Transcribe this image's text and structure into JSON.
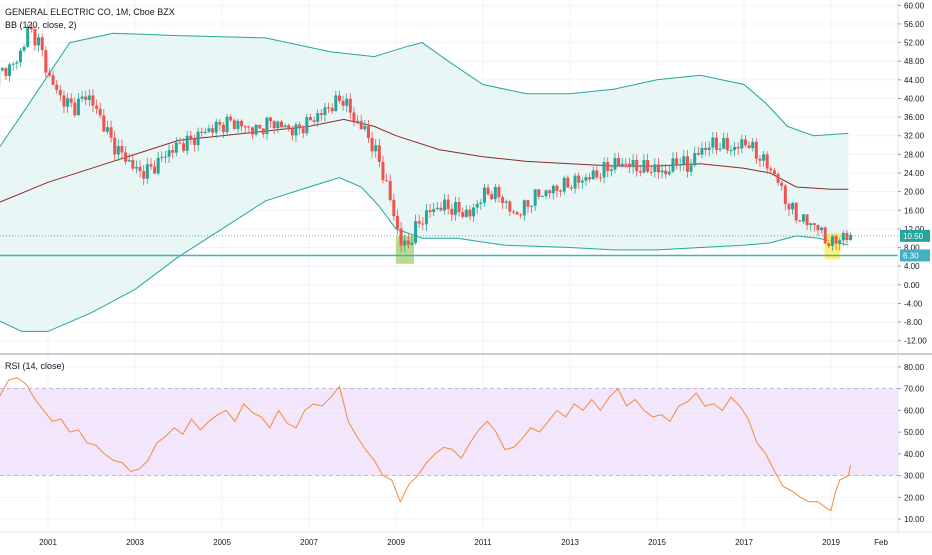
{
  "legend": {
    "symbol": "GENERAL ELECTRIC CO, 1M, Cboe BZX",
    "bb": "BB (120, close, 2)",
    "rsi": "RSI (14, close)"
  },
  "colors": {
    "up": "#26a69a",
    "down": "#ef5350",
    "bb_band": "#26a69a",
    "bb_basis": "#8d2b2b",
    "bb_fill": "#e8f6f5",
    "rsi_line": "#f28c3c",
    "rsi_band_fill": "#f3e5fb",
    "price_line": "#26a69a",
    "support_line": "#45b0c0",
    "highlight_green": "#8bc34a",
    "highlight_yellow": "#ffeb3b"
  },
  "chart_data": [
    {
      "type": "candlestick",
      "title": "GENERAL ELECTRIC CO, 1M, Cboe BZX",
      "ylim": [
        -14,
        62
      ],
      "yticks": [
        "60.00",
        "56.00",
        "52.00",
        "48.00",
        "44.00",
        "40.00",
        "36.00",
        "32.00",
        "28.00",
        "24.00",
        "20.00",
        "16.00",
        "12.00",
        "8.00",
        "4.00",
        "0.00",
        "-4.00",
        "-8.00",
        "-12.00"
      ],
      "xticks": [
        "2001",
        "2003",
        "2005",
        "2007",
        "2009",
        "2011",
        "2013",
        "2015",
        "2017",
        "2019",
        "Feb"
      ],
      "price_labels": [
        {
          "text": "10.50",
          "value": 10.5
        },
        {
          "text": "6.30",
          "value": 6.3
        }
      ],
      "support_level": 6.3,
      "series": [
        {
          "name": "BB (120, close, 2)",
          "upper": [
            [
              1999.7,
              27
            ],
            [
              2000.5,
              38
            ],
            [
              2001.5,
              52
            ],
            [
              2002.5,
              54
            ],
            [
              2004,
              53.5
            ],
            [
              2006,
              53
            ],
            [
              2007.5,
              50
            ],
            [
              2008.5,
              49
            ],
            [
              2009.2,
              51
            ],
            [
              2009.6,
              52
            ],
            [
              2010.2,
              48
            ],
            [
              2011,
              43
            ],
            [
              2012,
              41
            ],
            [
              2013,
              41
            ],
            [
              2014,
              42
            ],
            [
              2015,
              44
            ],
            [
              2016,
              45
            ],
            [
              2017,
              43
            ],
            [
              2017.5,
              39
            ],
            [
              2018,
              34
            ],
            [
              2018.6,
              32
            ],
            [
              2019.4,
              32.5
            ]
          ],
          "basis": [
            [
              1999.7,
              17
            ],
            [
              2001,
              22
            ],
            [
              2002,
              25
            ],
            [
              2003,
              28
            ],
            [
              2004,
              31
            ],
            [
              2005,
              32
            ],
            [
              2006,
              33
            ],
            [
              2007,
              34
            ],
            [
              2007.8,
              35.5
            ],
            [
              2008.5,
              34
            ],
            [
              2009,
              32
            ],
            [
              2010,
              29
            ],
            [
              2011,
              27.5
            ],
            [
              2012,
              26.5
            ],
            [
              2013,
              26
            ],
            [
              2014,
              25.5
            ],
            [
              2015,
              25.5
            ],
            [
              2016,
              26
            ],
            [
              2017,
              25
            ],
            [
              2017.6,
              24
            ],
            [
              2018.2,
              21
            ],
            [
              2019,
              20.5
            ],
            [
              2019.4,
              20.5
            ]
          ],
          "lower": [
            [
              1999.7,
              -7
            ],
            [
              2000.4,
              -10
            ],
            [
              2001,
              -10
            ],
            [
              2002,
              -6
            ],
            [
              2003,
              -1
            ],
            [
              2004,
              6
            ],
            [
              2005,
              12
            ],
            [
              2006,
              18
            ],
            [
              2007,
              21
            ],
            [
              2007.7,
              23
            ],
            [
              2008.2,
              21
            ],
            [
              2008.6,
              17
            ],
            [
              2009,
              12
            ],
            [
              2009.6,
              10
            ],
            [
              2010.4,
              10
            ],
            [
              2011.5,
              8.5
            ],
            [
              2013,
              8
            ],
            [
              2014,
              7.5
            ],
            [
              2015,
              7.5
            ],
            [
              2016,
              8
            ],
            [
              2017,
              8.5
            ],
            [
              2017.6,
              9
            ],
            [
              2018.2,
              10.5
            ],
            [
              2018.7,
              10
            ],
            [
              2019.4,
              8.5
            ]
          ]
        }
      ],
      "close_path": [
        [
          1999.7,
          44
        ],
        [
          2000,
          46
        ],
        [
          2000.3,
          48
        ],
        [
          2000.55,
          55
        ],
        [
          2000.8,
          52
        ],
        [
          2001,
          45
        ],
        [
          2001.3,
          40
        ],
        [
          2001.6,
          38
        ],
        [
          2001.9,
          41
        ],
        [
          2002.2,
          36
        ],
        [
          2002.5,
          30
        ],
        [
          2002.8,
          27
        ],
        [
          2003.1,
          24
        ],
        [
          2003.4,
          25
        ],
        [
          2003.7,
          28
        ],
        [
          2004,
          30
        ],
        [
          2004.3,
          31
        ],
        [
          2004.6,
          33
        ],
        [
          2004.9,
          34
        ],
        [
          2005.2,
          35
        ],
        [
          2005.5,
          34
        ],
        [
          2005.8,
          33
        ],
        [
          2006.1,
          35
        ],
        [
          2006.4,
          34
        ],
        [
          2006.7,
          33
        ],
        [
          2007,
          35
        ],
        [
          2007.3,
          37
        ],
        [
          2007.6,
          39
        ],
        [
          2007.8,
          40
        ],
        [
          2008,
          36
        ],
        [
          2008.3,
          33
        ],
        [
          2008.6,
          27
        ],
        [
          2008.85,
          19
        ],
        [
          2009.0,
          13
        ],
        [
          2009.15,
          8
        ],
        [
          2009.3,
          9
        ],
        [
          2009.5,
          13
        ],
        [
          2009.8,
          16
        ],
        [
          2010.1,
          17
        ],
        [
          2010.4,
          16
        ],
        [
          2010.7,
          15
        ],
        [
          2010.9,
          18
        ],
        [
          2011.1,
          20
        ],
        [
          2011.4,
          19
        ],
        [
          2011.7,
          15
        ],
        [
          2011.9,
          16
        ],
        [
          2012.2,
          19
        ],
        [
          2012.5,
          20
        ],
        [
          2012.8,
          21
        ],
        [
          2013.1,
          22
        ],
        [
          2013.4,
          23
        ],
        [
          2013.7,
          24
        ],
        [
          2014,
          26
        ],
        [
          2014.3,
          26
        ],
        [
          2014.6,
          25
        ],
        [
          2014.9,
          25
        ],
        [
          2015.2,
          24
        ],
        [
          2015.5,
          27
        ],
        [
          2015.7,
          25
        ],
        [
          2015.9,
          28
        ],
        [
          2016.2,
          30
        ],
        [
          2016.5,
          30
        ],
        [
          2016.8,
          29
        ],
        [
          2017,
          31
        ],
        [
          2017.2,
          29
        ],
        [
          2017.4,
          27
        ],
        [
          2017.6,
          25
        ],
        [
          2017.8,
          22
        ],
        [
          2018,
          17
        ],
        [
          2018.3,
          14
        ],
        [
          2018.6,
          13
        ],
        [
          2018.8,
          11
        ],
        [
          2019.0,
          8
        ],
        [
          2019.1,
          10
        ],
        [
          2019.3,
          10
        ],
        [
          2019.45,
          10.5
        ]
      ]
    },
    {
      "type": "line",
      "title": "RSI (14, close)",
      "ylim": [
        5,
        85
      ],
      "yticks": [
        "80.00",
        "70.00",
        "60.00",
        "50.00",
        "40.00",
        "30.00",
        "20.00",
        "10.00"
      ],
      "band": [
        30,
        70
      ],
      "series": [
        {
          "name": "RSI (14, close)",
          "values": [
            [
              1999.7,
              75
            ],
            [
              1999.9,
              67
            ],
            [
              2000.1,
              74
            ],
            [
              2000.3,
              75
            ],
            [
              2000.5,
              72
            ],
            [
              2000.7,
              65
            ],
            [
              2000.9,
              60
            ],
            [
              2001.1,
              55
            ],
            [
              2001.3,
              56
            ],
            [
              2001.5,
              50
            ],
            [
              2001.7,
              51
            ],
            [
              2001.9,
              45
            ],
            [
              2002.1,
              44
            ],
            [
              2002.3,
              40
            ],
            [
              2002.5,
              37
            ],
            [
              2002.7,
              36
            ],
            [
              2002.9,
              32
            ],
            [
              2003.1,
              33
            ],
            [
              2003.3,
              37
            ],
            [
              2003.5,
              45
            ],
            [
              2003.7,
              48
            ],
            [
              2003.9,
              52
            ],
            [
              2004.1,
              49
            ],
            [
              2004.3,
              56
            ],
            [
              2004.5,
              51
            ],
            [
              2004.7,
              55
            ],
            [
              2004.9,
              58
            ],
            [
              2005.1,
              60
            ],
            [
              2005.3,
              55
            ],
            [
              2005.5,
              63
            ],
            [
              2005.7,
              59
            ],
            [
              2005.9,
              57
            ],
            [
              2006.1,
              52
            ],
            [
              2006.3,
              60
            ],
            [
              2006.5,
              54
            ],
            [
              2006.7,
              52
            ],
            [
              2006.9,
              60
            ],
            [
              2007.1,
              63
            ],
            [
              2007.3,
              62
            ],
            [
              2007.5,
              66
            ],
            [
              2007.7,
              71
            ],
            [
              2007.9,
              55
            ],
            [
              2008.1,
              48
            ],
            [
              2008.3,
              42
            ],
            [
              2008.5,
              37
            ],
            [
              2008.7,
              30
            ],
            [
              2008.9,
              28
            ],
            [
              2009.1,
              18
            ],
            [
              2009.3,
              26
            ],
            [
              2009.5,
              30
            ],
            [
              2009.7,
              36
            ],
            [
              2009.9,
              40
            ],
            [
              2010.1,
              43
            ],
            [
              2010.3,
              42
            ],
            [
              2010.5,
              38
            ],
            [
              2010.7,
              45
            ],
            [
              2010.9,
              51
            ],
            [
              2011.1,
              55
            ],
            [
              2011.3,
              50
            ],
            [
              2011.5,
              42
            ],
            [
              2011.7,
              43
            ],
            [
              2011.9,
              47
            ],
            [
              2012.1,
              52
            ],
            [
              2012.3,
              50
            ],
            [
              2012.5,
              55
            ],
            [
              2012.7,
              60
            ],
            [
              2012.9,
              57
            ],
            [
              2013.1,
              63
            ],
            [
              2013.3,
              60
            ],
            [
              2013.5,
              65
            ],
            [
              2013.7,
              60
            ],
            [
              2013.9,
              66
            ],
            [
              2014.1,
              70
            ],
            [
              2014.3,
              62
            ],
            [
              2014.5,
              65
            ],
            [
              2014.7,
              60
            ],
            [
              2014.9,
              57
            ],
            [
              2015.1,
              58
            ],
            [
              2015.3,
              55
            ],
            [
              2015.5,
              62
            ],
            [
              2015.7,
              64
            ],
            [
              2015.9,
              68
            ],
            [
              2016.1,
              62
            ],
            [
              2016.3,
              63
            ],
            [
              2016.5,
              60
            ],
            [
              2016.7,
              66
            ],
            [
              2016.9,
              62
            ],
            [
              2017.1,
              56
            ],
            [
              2017.3,
              45
            ],
            [
              2017.5,
              40
            ],
            [
              2017.7,
              32
            ],
            [
              2017.9,
              25
            ],
            [
              2018.1,
              23
            ],
            [
              2018.3,
              20
            ],
            [
              2018.5,
              18
            ],
            [
              2018.7,
              18
            ],
            [
              2018.9,
              15
            ],
            [
              2019.0,
              14
            ],
            [
              2019.1,
              22
            ],
            [
              2019.2,
              28
            ],
            [
              2019.3,
              29
            ],
            [
              2019.4,
              30
            ],
            [
              2019.45,
              35
            ]
          ]
        }
      ]
    }
  ]
}
